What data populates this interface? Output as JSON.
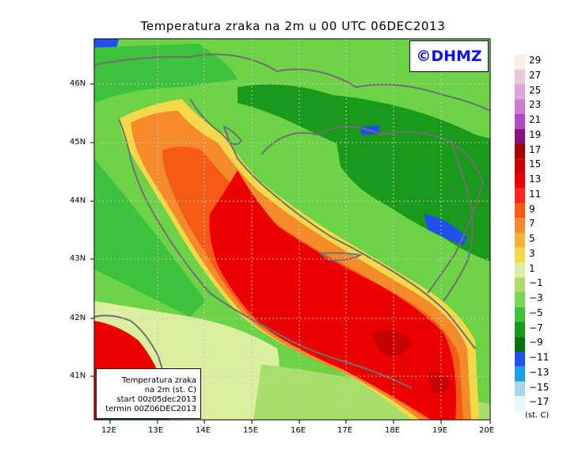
{
  "title": "Temperatura zraka na 2m u 00 UTC 06DEC2013",
  "watermark": "©DHMZ",
  "info_box": {
    "line1": "Temperatura zraka",
    "line2": "na 2m (st. C)",
    "line3": "start 00z05dec2013",
    "line4": "termin 00Z06DEC2013"
  },
  "x_axis_labels": [
    "12E",
    "13E",
    "14E",
    "15E",
    "16E",
    "17E",
    "18E",
    "19E",
    "20E"
  ],
  "y_axis_labels": [
    "46N",
    "45N",
    "44N",
    "43N",
    "42N",
    "41N"
  ],
  "legend": {
    "unit": "(st. C)",
    "labels": [
      "29",
      "27",
      "25",
      "23",
      "21",
      "19",
      "17",
      "15",
      "13",
      "11",
      "9",
      "7",
      "5",
      "3",
      "1",
      "−1",
      "−3",
      "−5",
      "−7",
      "−9",
      "−11",
      "−13",
      "−15",
      "−17"
    ],
    "colors": [
      "#fbeee0",
      "#e8c6dc",
      "#dca4d8",
      "#cc7ad0",
      "#b548c3",
      "#8a0f80",
      "#a50000",
      "#c80000",
      "#ef0000",
      "#ff2424",
      "#f75a14",
      "#f48a2a",
      "#f2b23a",
      "#f3d848",
      "#dcefa0",
      "#a8df6a",
      "#78d850",
      "#3cc23c",
      "#1a9a1a",
      "#097009",
      "#2050f0",
      "#17a0ea",
      "#a6d6ea",
      "#e6f8fa"
    ]
  },
  "layers": {
    "mountain": "#1a9a1a",
    "highland": "#3cc23c",
    "lowland": "#6cd246",
    "coast": "#a8df6a",
    "warm_land": "#dcefa0",
    "shore": "#f3d848",
    "sea_edge": "#f48a2a",
    "sea_warm": "#f75a14",
    "sea_core": "#ef0000",
    "sea_deep": "#c80000",
    "cold": "#2050f0",
    "borders": "#707070",
    "grid": "#c8c8c8"
  }
}
